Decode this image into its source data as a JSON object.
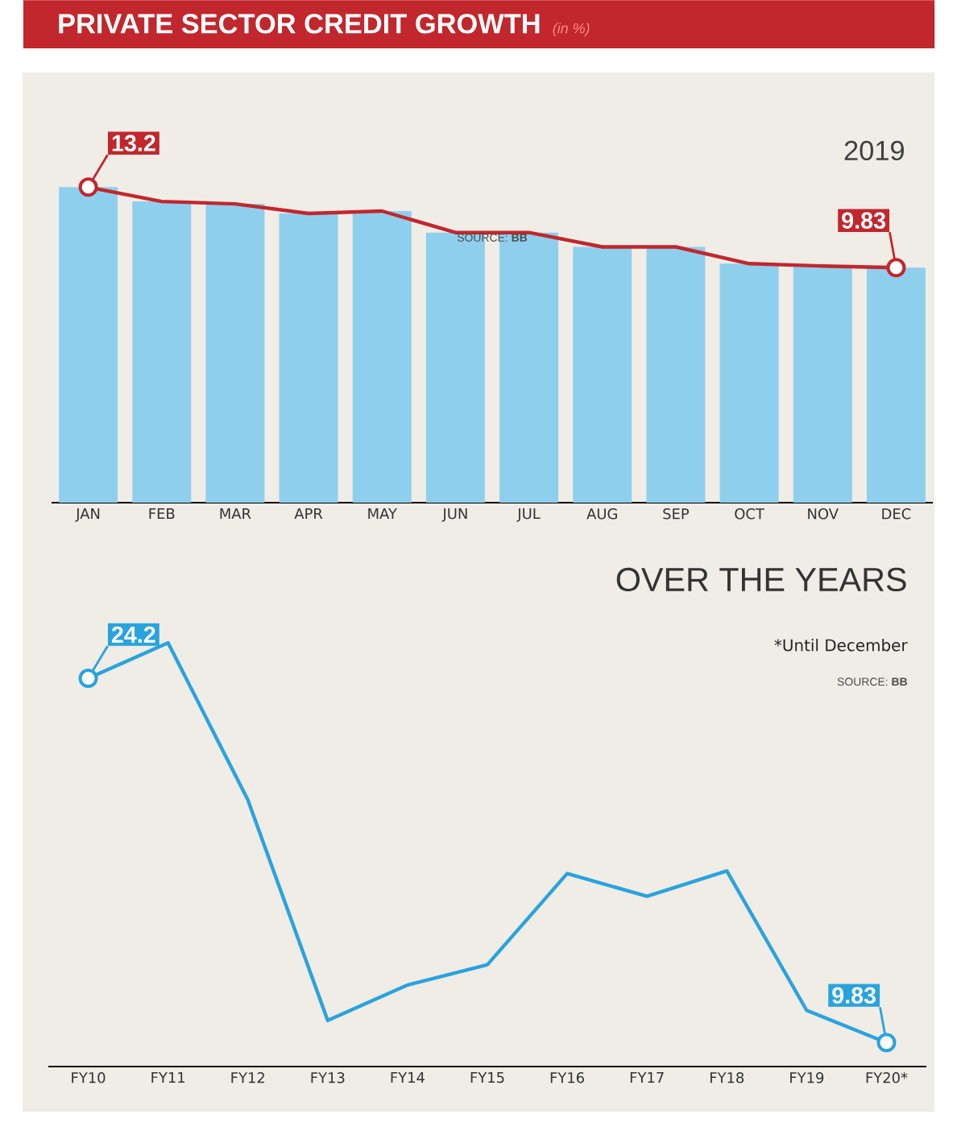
{
  "chart_data": [
    {
      "type": "bar",
      "title": "PRIVATE SECTOR CREDIT GROWTH",
      "subtitle": "(in %)",
      "categories": [
        "JAN",
        "FEB",
        "MAR",
        "APR",
        "MAY",
        "JUN",
        "JUL",
        "AUG",
        "SEP",
        "OCT",
        "NOV",
        "DEC"
      ],
      "series": [
        {
          "type": "bar",
          "color": "#8fcfee",
          "values": [
            13.2,
            12.6,
            12.5,
            12.1,
            12.2,
            11.3,
            11.3,
            10.7,
            10.7,
            10.0,
            9.9,
            9.83
          ]
        },
        {
          "type": "line",
          "color": "#c1272d",
          "values": [
            13.2,
            12.6,
            12.5,
            12.1,
            12.2,
            11.3,
            11.3,
            10.7,
            10.7,
            10.0,
            9.9,
            9.83
          ],
          "value_labels": [
            "13.2",
            null,
            null,
            null,
            null,
            null,
            null,
            null,
            null,
            null,
            null,
            "9.83"
          ]
        }
      ],
      "annotations": [
        "2019",
        "SOURCE: **BB**"
      ]
    },
    {
      "type": "line",
      "title": "OVER THE YEARS",
      "categories": [
        "FY10",
        "FY11",
        "FY12",
        "FY13",
        "FY14",
        "FY15",
        "FY16",
        "FY17",
        "FY18",
        "FY19",
        "FY20*"
      ],
      "series": [
        {
          "color": "#29a3dc",
          "values": [
            24.2,
            25.6,
            19.4,
            10.7,
            12.1,
            12.9,
            16.5,
            15.6,
            16.6,
            11.1,
            9.83
          ],
          "value_labels": [
            "24.2",
            null,
            null,
            null,
            null,
            null,
            null,
            null,
            null,
            null,
            "9.83"
          ]
        }
      ],
      "annotations": [
        "*Until December",
        "SOURCE: **BB**"
      ]
    }
  ]
}
